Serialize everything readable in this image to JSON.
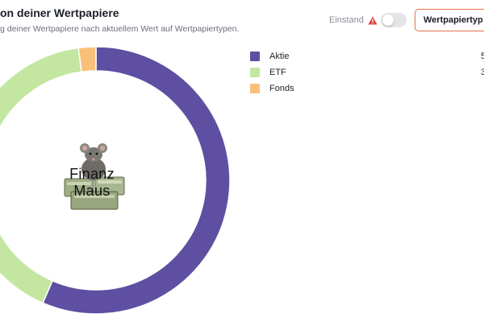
{
  "header": {
    "title": "on deiner Wertpapiere",
    "subtitle": "g deiner Wertpapiere nach aktuellem Wert auf Wertpapiertypen."
  },
  "controls": {
    "einstand_label": "Einstand",
    "warning_icon": "warning-icon",
    "toggle_on": false,
    "dropdown_value": "Wertpapiertyp"
  },
  "logo": {
    "line1": "Finanz",
    "line2": "Maus"
  },
  "colors": {
    "aktie": "#5e4fa2",
    "etf": "#c3e6a0",
    "fonds": "#f9c07a",
    "accent": "#e2704a"
  },
  "legend": [
    {
      "label": "Aktie",
      "value": "5",
      "color": "#5e4fa2"
    },
    {
      "label": "ETF",
      "value": "3",
      "color": "#c3e6a0"
    },
    {
      "label": "Fonds",
      "value": "",
      "color": "#f9c07a"
    }
  ],
  "chart_data": {
    "type": "pie",
    "variant": "donut",
    "categories": [
      "Aktie",
      "ETF",
      "Fonds"
    ],
    "values": [
      56.5,
      41.4,
      2.1
    ],
    "colors": [
      "#5e4fa2",
      "#c3e6a0",
      "#f9c07a"
    ]
  }
}
